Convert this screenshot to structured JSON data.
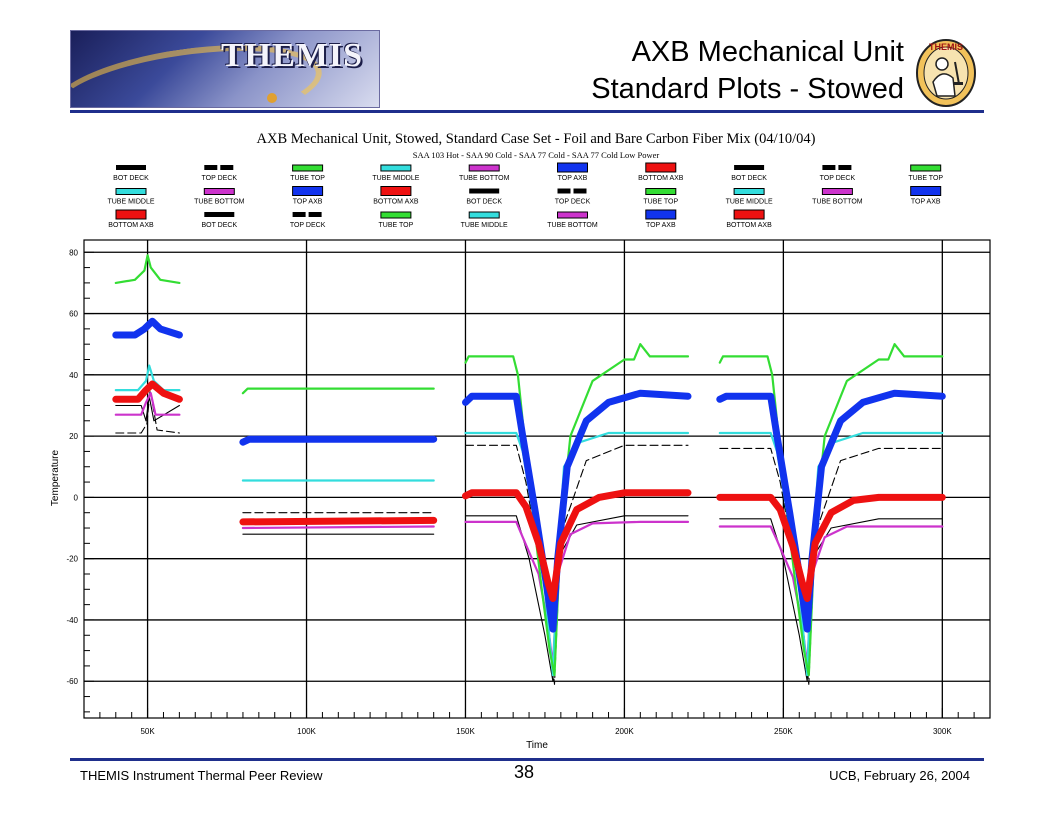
{
  "slide": {
    "title_line1": "AXB Mechanical Unit",
    "title_line2": "Standard Plots - Stowed",
    "logo_text": "THEMIS",
    "banner_text": "THEMIS",
    "footer_left": "THEMIS Instrument Thermal Peer Review",
    "page_number": "38",
    "footer_right": "UCB, February 26, 2004",
    "accent_color": "#1f2f8c"
  },
  "chart_data": {
    "type": "line",
    "title": "AXB Mechanical Unit, Stowed, Standard Case Set - Foil and Bare Carbon Fiber Mix  (04/10/04)",
    "subtitle": "SAA 103 Hot - SAA 90 Cold - SAA 77 Cold - SAA 77 Cold Low Power",
    "xlabel": "Time",
    "ylabel": "Temperature",
    "xlim": [
      30000,
      315000
    ],
    "ylim": [
      -72,
      84
    ],
    "x_ticks": [
      50000,
      100000,
      150000,
      200000,
      250000,
      300000
    ],
    "x_tick_labels": [
      "50K",
      "100K",
      "150K",
      "200K",
      "250K",
      "300K"
    ],
    "y_ticks": [
      -60,
      -40,
      -20,
      0,
      20,
      40,
      60,
      80
    ],
    "y_tick_labels": [
      "-60",
      "-40",
      "-20",
      "0",
      "20",
      "40",
      "60",
      "80"
    ],
    "grid": true,
    "legend_position": "top",
    "colors": {
      "BOT DECK": "#000000",
      "TOP DECK": "#000000",
      "TUBE TOP": "#33dd33",
      "TUBE MIDDLE": "#33dddd",
      "TUBE BOTTOM": "#cc33cc",
      "TOP AXB": "#1133ee",
      "BOTTOM AXB": "#ee1111"
    },
    "legend": [
      {
        "label": "BOT DECK",
        "series": "BOT DECK"
      },
      {
        "label": "TOP DECK",
        "series": "TOP DECK"
      },
      {
        "label": "TUBE TOP",
        "series": "TUBE TOP"
      },
      {
        "label": "TUBE MIDDLE",
        "series": "TUBE MIDDLE"
      },
      {
        "label": "TUBE BOTTOM",
        "series": "TUBE BOTTOM"
      },
      {
        "label": "TOP AXB",
        "series": "TOP AXB"
      },
      {
        "label": "BOTTOM AXB",
        "series": "BOTTOM AXB"
      },
      {
        "label": "BOT DECK",
        "series": "BOT DECK"
      },
      {
        "label": "TOP DECK",
        "series": "TOP DECK"
      },
      {
        "label": "TUBE TOP",
        "series": "TUBE TOP"
      },
      {
        "label": "TUBE MIDDLE",
        "series": "TUBE MIDDLE"
      },
      {
        "label": "TUBE BOTTOM",
        "series": "TUBE BOTTOM"
      },
      {
        "label": "TOP AXB",
        "series": "TOP AXB"
      },
      {
        "label": "BOTTOM AXB",
        "series": "BOTTOM AXB"
      },
      {
        "label": "BOT DECK",
        "series": "BOT DECK"
      },
      {
        "label": "TOP DECK",
        "series": "TOP DECK"
      },
      {
        "label": "TUBE TOP",
        "series": "TUBE TOP"
      },
      {
        "label": "TUBE MIDDLE",
        "series": "TUBE MIDDLE"
      },
      {
        "label": "TUBE BOTTOM",
        "series": "TUBE BOTTOM"
      },
      {
        "label": "TOP AXB",
        "series": "TOP AXB"
      },
      {
        "label": "BOTTOM AXB",
        "series": "BOTTOM AXB"
      },
      {
        "label": "BOT DECK",
        "series": "BOT DECK"
      },
      {
        "label": "TOP DECK",
        "series": "TOP DECK"
      },
      {
        "label": "TUBE TOP",
        "series": "TUBE TOP"
      },
      {
        "label": "TUBE MIDDLE",
        "series": "TUBE MIDDLE"
      },
      {
        "label": "TUBE BOTTOM",
        "series": "TUBE BOTTOM"
      },
      {
        "label": "TOP AXB",
        "series": "TOP AXB"
      },
      {
        "label": "BOTTOM AXB",
        "series": "BOTTOM AXB"
      }
    ],
    "series": [
      {
        "name": "TUBE TOP",
        "x": [
          40000,
          46000,
          49000,
          50000,
          51000,
          54000,
          60000
        ],
        "y": [
          70,
          71,
          74,
          79,
          75,
          71,
          70
        ]
      },
      {
        "name": "TOP AXB",
        "x": [
          40000,
          46000,
          49000,
          51500,
          54000,
          60000
        ],
        "y": [
          53,
          53,
          55,
          57.5,
          55,
          53
        ]
      },
      {
        "name": "TUBE MIDDLE",
        "x": [
          40000,
          47000,
          49500,
          50500,
          52000,
          55000,
          60000
        ],
        "y": [
          35,
          35,
          38,
          43,
          38,
          35,
          35
        ]
      },
      {
        "name": "BOTTOM AXB",
        "x": [
          40000,
          47000,
          49500,
          51500,
          55000,
          60000
        ],
        "y": [
          32,
          32,
          35,
          37,
          34,
          32
        ]
      },
      {
        "name": "TUBE BOTTOM",
        "x": [
          40000,
          48000,
          49500,
          51000,
          52500,
          60000
        ],
        "y": [
          27,
          27,
          31,
          34,
          27,
          27
        ]
      },
      {
        "name": "BOT DECK",
        "x": [
          40000,
          48000,
          49500,
          50500,
          52000,
          60000
        ],
        "y": [
          30,
          30,
          25,
          33,
          25,
          30
        ]
      },
      {
        "name": "TOP DECK",
        "x": [
          40000,
          48000,
          49800,
          50800,
          53000,
          60000
        ],
        "y": [
          21,
          21,
          24,
          35,
          22,
          21
        ]
      },
      {
        "name": "TUBE TOP",
        "x": [
          80000,
          81500,
          140000
        ],
        "y": [
          34,
          35.5,
          35.5
        ]
      },
      {
        "name": "TOP AXB",
        "x": [
          80000,
          82000,
          140000
        ],
        "y": [
          18,
          19,
          19
        ]
      },
      {
        "name": "TUBE MIDDLE",
        "x": [
          80000,
          140000
        ],
        "y": [
          5.5,
          5.5
        ]
      },
      {
        "name": "TOP DECK",
        "x": [
          80000,
          140000
        ],
        "y": [
          -5,
          -5
        ]
      },
      {
        "name": "BOTTOM AXB",
        "x": [
          80000,
          140000
        ],
        "y": [
          -8,
          -7.5
        ]
      },
      {
        "name": "TUBE BOTTOM",
        "x": [
          80000,
          140000
        ],
        "y": [
          -10,
          -9.5
        ]
      },
      {
        "name": "BOT DECK",
        "x": [
          80000,
          140000
        ],
        "y": [
          -12,
          -12
        ]
      },
      {
        "name": "TUBE TOP",
        "x": [
          150000,
          151000,
          165000,
          166500,
          170000,
          174000,
          176500,
          178000,
          180000,
          183000,
          190000,
          200000,
          203000,
          205000,
          208000,
          220000
        ],
        "y": [
          44,
          46,
          46,
          40,
          5,
          -30,
          -50,
          -58,
          -10,
          20,
          38,
          45,
          45,
          50,
          46,
          46
        ]
      },
      {
        "name": "TOP AXB",
        "x": [
          150000,
          152000,
          166000,
          168000,
          172000,
          175000,
          177500,
          179000,
          182000,
          188000,
          195000,
          205000,
          220000
        ],
        "y": [
          31,
          33,
          33,
          20,
          -5,
          -25,
          -43,
          -20,
          10,
          25,
          31,
          34,
          33
        ]
      },
      {
        "name": "TUBE MIDDLE",
        "x": [
          150000,
          166000,
          168000,
          172000,
          175000,
          177500,
          179000,
          181000,
          186000,
          195000,
          220000
        ],
        "y": [
          21,
          21,
          15,
          -10,
          -30,
          -58,
          -20,
          10,
          18,
          21,
          21
        ]
      },
      {
        "name": "BOTTOM AXB",
        "x": [
          150000,
          152000,
          166000,
          169000,
          173000,
          176000,
          177500,
          180000,
          185000,
          192000,
          200000,
          220000
        ],
        "y": [
          0.5,
          1.5,
          1.5,
          -3,
          -15,
          -28,
          -33,
          -15,
          -4,
          0,
          1.5,
          1.5
        ]
      },
      {
        "name": "TUBE BOTTOM",
        "x": [
          150000,
          166000,
          168000,
          173000,
          176000,
          177500,
          179000,
          183000,
          190000,
          205000,
          220000
        ],
        "y": [
          -8,
          -8,
          -13,
          -25,
          -42,
          -55,
          -25,
          -12,
          -8.5,
          -8,
          -8
        ]
      },
      {
        "name": "BOT DECK",
        "x": [
          150000,
          166000,
          170000,
          175000,
          177500,
          179000,
          185000,
          200000,
          220000
        ],
        "y": [
          -6,
          -6,
          -20,
          -45,
          -60,
          -20,
          -9,
          -6,
          -6
        ]
      },
      {
        "name": "TOP DECK",
        "x": [
          150000,
          166000,
          169000,
          175000,
          178000,
          180000,
          188000,
          200000,
          220000
        ],
        "y": [
          17,
          17,
          5,
          -30,
          -61,
          -12,
          12,
          17,
          17
        ]
      },
      {
        "name": "TUBE TOP",
        "x": [
          230000,
          231000,
          245000,
          246500,
          250000,
          254000,
          256500,
          258000,
          260000,
          263000,
          270000,
          280000,
          283000,
          285000,
          288000,
          300000
        ],
        "y": [
          44,
          46,
          46,
          40,
          5,
          -30,
          -50,
          -58,
          -10,
          20,
          38,
          45,
          45,
          50,
          46,
          46
        ]
      },
      {
        "name": "TOP AXB",
        "x": [
          230000,
          232000,
          246000,
          248000,
          252000,
          255000,
          257500,
          259000,
          262000,
          268000,
          275000,
          285000,
          300000
        ],
        "y": [
          32,
          33,
          33,
          20,
          -5,
          -25,
          -43,
          -20,
          10,
          25,
          31,
          34,
          33
        ]
      },
      {
        "name": "TUBE MIDDLE",
        "x": [
          230000,
          246000,
          248000,
          252000,
          255000,
          257500,
          259000,
          261000,
          266000,
          275000,
          300000
        ],
        "y": [
          21,
          21,
          15,
          -10,
          -30,
          -58,
          -20,
          10,
          18,
          21,
          21
        ]
      },
      {
        "name": "BOTTOM AXB",
        "x": [
          230000,
          232000,
          246000,
          249000,
          253000,
          256000,
          257500,
          260000,
          265000,
          272000,
          280000,
          300000
        ],
        "y": [
          0,
          0,
          0,
          -4,
          -16,
          -28,
          -33,
          -15,
          -5,
          -1,
          0,
          0
        ]
      },
      {
        "name": "TUBE BOTTOM",
        "x": [
          230000,
          246000,
          248000,
          253000,
          256000,
          257500,
          259000,
          263000,
          270000,
          285000,
          300000
        ],
        "y": [
          -9.5,
          -9.5,
          -14,
          -26,
          -42,
          -55,
          -25,
          -13,
          -9.5,
          -9.5,
          -9.5
        ]
      },
      {
        "name": "BOT DECK",
        "x": [
          230000,
          246000,
          250000,
          255000,
          257500,
          259000,
          265000,
          280000,
          300000
        ],
        "y": [
          -7,
          -7,
          -20,
          -45,
          -60,
          -20,
          -10,
          -7,
          -7
        ]
      },
      {
        "name": "TOP DECK",
        "x": [
          230000,
          246000,
          249000,
          255000,
          258000,
          260000,
          268000,
          280000,
          300000
        ],
        "y": [
          16,
          16,
          5,
          -30,
          -61,
          -12,
          12,
          16,
          16
        ]
      }
    ]
  }
}
